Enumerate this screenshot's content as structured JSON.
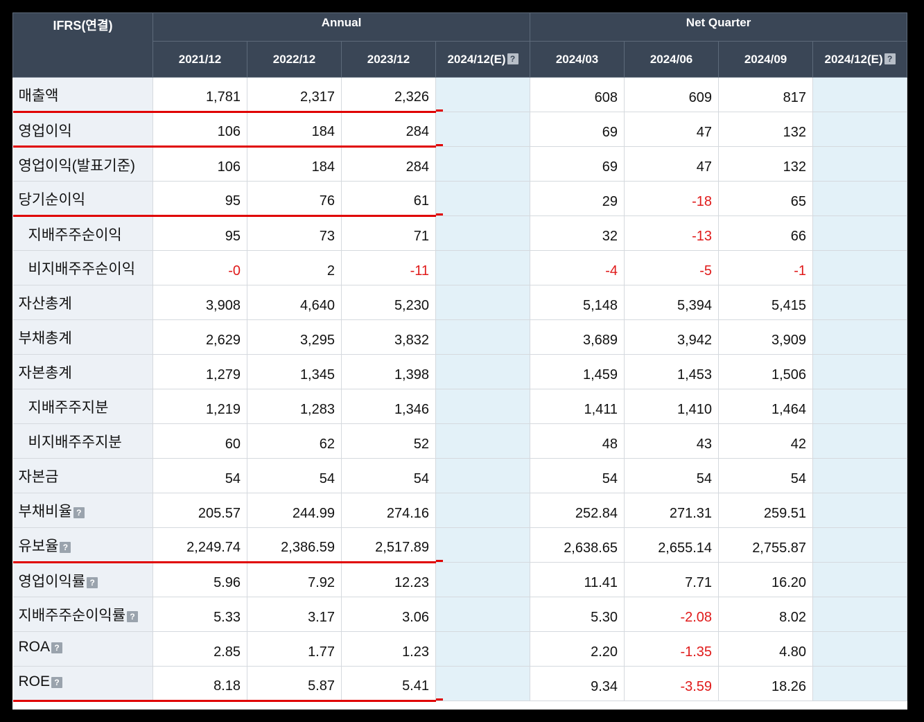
{
  "header": {
    "corner": "IFRS(연결)",
    "annual_label": "Annual",
    "quarter_label": "Net Quarter",
    "annual_cols": [
      "2021/12",
      "2022/12",
      "2023/12",
      "2024/12(E)"
    ],
    "quarter_cols": [
      "2024/03",
      "2024/06",
      "2024/09",
      "2024/12(E)"
    ]
  },
  "rows": [
    {
      "label": "매출액",
      "annual": [
        "1,781",
        "2,317",
        "2,326",
        ""
      ],
      "quarter": [
        "608",
        "609",
        "817",
        ""
      ]
    },
    {
      "label": "영업이익",
      "annual": [
        "106",
        "184",
        "284",
        ""
      ],
      "quarter": [
        "69",
        "47",
        "132",
        ""
      ]
    },
    {
      "label": "영업이익(발표기준)",
      "annual": [
        "106",
        "184",
        "284",
        ""
      ],
      "quarter": [
        "69",
        "47",
        "132",
        ""
      ]
    },
    {
      "label": "당기순이익",
      "annual": [
        "95",
        "76",
        "61",
        ""
      ],
      "quarter": [
        "29",
        "-18",
        "65",
        ""
      ]
    },
    {
      "label": "지배주주순이익",
      "annual": [
        "95",
        "73",
        "71",
        ""
      ],
      "quarter": [
        "32",
        "-13",
        "66",
        ""
      ]
    },
    {
      "label": "비지배주주순이익",
      "annual": [
        "-0",
        "2",
        "-11",
        ""
      ],
      "quarter": [
        "-4",
        "-5",
        "-1",
        ""
      ]
    },
    {
      "label": "자산총계",
      "annual": [
        "3,908",
        "4,640",
        "5,230",
        ""
      ],
      "quarter": [
        "5,148",
        "5,394",
        "5,415",
        ""
      ]
    },
    {
      "label": "부채총계",
      "annual": [
        "2,629",
        "3,295",
        "3,832",
        ""
      ],
      "quarter": [
        "3,689",
        "3,942",
        "3,909",
        ""
      ]
    },
    {
      "label": "자본총계",
      "annual": [
        "1,279",
        "1,345",
        "1,398",
        ""
      ],
      "quarter": [
        "1,459",
        "1,453",
        "1,506",
        ""
      ]
    },
    {
      "label": "지배주주지분",
      "annual": [
        "1,219",
        "1,283",
        "1,346",
        ""
      ],
      "quarter": [
        "1,411",
        "1,410",
        "1,464",
        ""
      ]
    },
    {
      "label": "비지배주주지분",
      "annual": [
        "60",
        "62",
        "52",
        ""
      ],
      "quarter": [
        "48",
        "43",
        "42",
        ""
      ]
    },
    {
      "label": "자본금",
      "annual": [
        "54",
        "54",
        "54",
        ""
      ],
      "quarter": [
        "54",
        "54",
        "54",
        ""
      ]
    },
    {
      "label": "부채비율",
      "annual": [
        "205.57",
        "244.99",
        "274.16",
        ""
      ],
      "quarter": [
        "252.84",
        "271.31",
        "259.51",
        ""
      ]
    },
    {
      "label": "유보율",
      "annual": [
        "2,249.74",
        "2,386.59",
        "2,517.89",
        ""
      ],
      "quarter": [
        "2,638.65",
        "2,655.14",
        "2,755.87",
        ""
      ]
    },
    {
      "label": "영업이익률",
      "annual": [
        "5.96",
        "7.92",
        "12.23",
        ""
      ],
      "quarter": [
        "11.41",
        "7.71",
        "16.20",
        ""
      ]
    },
    {
      "label": "지배주주순이익률",
      "annual": [
        "5.33",
        "3.17",
        "3.06",
        ""
      ],
      "quarter": [
        "5.30",
        "-2.08",
        "8.02",
        ""
      ]
    },
    {
      "label": "ROA",
      "annual": [
        "2.85",
        "1.77",
        "1.23",
        ""
      ],
      "quarter": [
        "2.20",
        "-1.35",
        "4.80",
        ""
      ]
    },
    {
      "label": "ROE",
      "annual": [
        "8.18",
        "5.87",
        "5.41",
        ""
      ],
      "quarter": [
        "9.34",
        "-3.59",
        "18.26",
        ""
      ]
    }
  ],
  "help_icon_glyph": "?",
  "colors": {
    "header_bg": "#3a4656",
    "label_bg": "#edf1f6",
    "estimate_bg": "#e3f1f8",
    "negative": "#e01a1a",
    "highlight_line": "#e00000"
  }
}
